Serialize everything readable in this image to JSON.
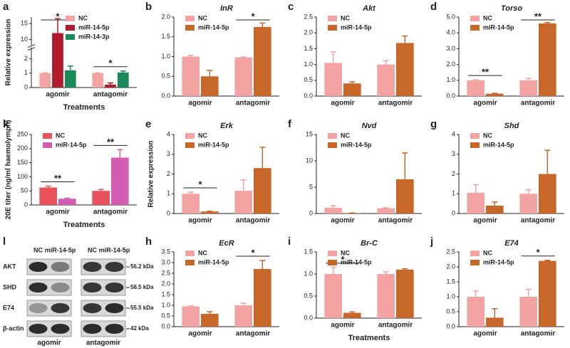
{
  "chart_data": [
    {
      "label": "a",
      "type": "bar",
      "categories": [
        "agomir",
        "antagomir"
      ],
      "y_label": "Relative expression",
      "x_label": "Treatments",
      "series": [
        {
          "name": "NC",
          "color": "#f4a3a3",
          "values": [
            1,
            1
          ],
          "errors": [
            0.02,
            0.02
          ]
        },
        {
          "name": "miR-14-5p",
          "color": "#b01c2e",
          "values": [
            12,
            0.2
          ],
          "errors": [
            4.5,
            0.12
          ]
        },
        {
          "name": "miR-14-3p",
          "color": "#1a8a5a",
          "values": [
            1.2,
            1.05
          ],
          "errors": [
            0.3,
            0.1
          ]
        }
      ],
      "ylim": [
        0,
        17
      ],
      "ybreak": [
        2.5,
        8
      ],
      "yticks": [
        0,
        1,
        2,
        10,
        15
      ],
      "annotations": [
        "*",
        "*"
      ]
    },
    {
      "label": "b",
      "title": "InR",
      "type": "bar",
      "categories": [
        "agomir",
        "antagomir"
      ],
      "series": [
        {
          "name": "NC",
          "color": "#f4a3a3",
          "values": [
            1.0,
            0.98
          ],
          "errors": [
            0.03,
            0.01
          ]
        },
        {
          "name": "miR-14-5p",
          "color": "#c8672a",
          "values": [
            0.5,
            1.75
          ],
          "errors": [
            0.15,
            0.1
          ]
        }
      ],
      "ylim": [
        0,
        2
      ],
      "yticks": [
        {
          "value": 0,
          "label": "0.0"
        },
        0.5,
        {
          "value": 1,
          "label": "1.0"
        },
        1.5,
        {
          "value": 2,
          "label": "2.0"
        }
      ],
      "annotations": [
        null,
        "*"
      ]
    },
    {
      "label": "c",
      "title": "Akt",
      "type": "bar",
      "categories": [
        "agomir",
        "antagomir"
      ],
      "series": [
        {
          "name": "NC",
          "color": "#f4a3a3",
          "values": [
            1.05,
            1.0
          ],
          "errors": [
            0.35,
            0.12
          ]
        },
        {
          "name": "miR-14-5p",
          "color": "#c8672a",
          "values": [
            0.4,
            1.68
          ],
          "errors": [
            0.05,
            0.22
          ]
        }
      ],
      "ylim": [
        0,
        2.5
      ],
      "yticks": [
        {
          "value": 0,
          "label": "0.0"
        },
        0.5,
        {
          "value": 1,
          "label": "1.0"
        },
        1.5,
        {
          "value": 2,
          "label": "2.0"
        },
        2.5
      ],
      "annotations": [
        null,
        null
      ]
    },
    {
      "label": "d",
      "title": "Torso",
      "type": "bar",
      "categories": [
        "agomir",
        "antagomir"
      ],
      "series": [
        {
          "name": "NC",
          "color": "#f4a3a3",
          "values": [
            1.0,
            1.0
          ],
          "errors": [
            0.03,
            0.12
          ]
        },
        {
          "name": "miR-14-5p",
          "color": "#c8672a",
          "values": [
            0.15,
            4.6
          ],
          "errors": [
            0.03,
            0.05
          ]
        }
      ],
      "ylim": [
        0,
        5
      ],
      "yticks": [
        {
          "value": 0,
          "label": "0.0"
        },
        {
          "value": 1,
          "label": "1.0"
        },
        {
          "value": 2,
          "label": "2.0"
        },
        {
          "value": 3,
          "label": "3.0"
        },
        {
          "value": 4,
          "label": "4.0"
        },
        {
          "value": 5,
          "label": "5.0"
        }
      ],
      "annotations": [
        "**",
        "**"
      ]
    },
    {
      "label": "k",
      "type": "bar",
      "categories": [
        "agomir",
        "antagomir"
      ],
      "y_label": "20E titer (ng/ml haemolymph)",
      "x_label": "Treatments",
      "series": [
        {
          "name": "NC",
          "color": "#e8525a",
          "values": [
            62,
            50
          ],
          "errors": [
            5,
            5
          ]
        },
        {
          "name": "miR-14-5p",
          "color": "#d35db3",
          "values": [
            22,
            168
          ],
          "errors": [
            2,
            28
          ]
        }
      ],
      "ylim": [
        0,
        250
      ],
      "yticks": [
        0,
        50,
        100,
        150,
        200,
        250
      ],
      "annotations": [
        "**",
        "**"
      ]
    },
    {
      "label": "e",
      "title": "Erk",
      "type": "bar",
      "categories": [
        "agomir",
        "antagomir"
      ],
      "y_label": "Relative expression",
      "series": [
        {
          "name": "NC",
          "color": "#f4a3a3",
          "values": [
            1.0,
            1.15
          ],
          "errors": [
            0.08,
            0.55
          ]
        },
        {
          "name": "miR-14-5p",
          "color": "#c8672a",
          "values": [
            0.1,
            2.3
          ],
          "errors": [
            0.02,
            1.05
          ]
        }
      ],
      "ylim": [
        0,
        4
      ],
      "yticks": [
        0,
        1,
        2,
        3,
        4
      ],
      "annotations": [
        "*",
        null
      ]
    },
    {
      "label": "f",
      "title": "Nvd",
      "type": "bar",
      "categories": [
        "agomir",
        "antagomir"
      ],
      "series": [
        {
          "name": "NC",
          "color": "#f4a3a3",
          "values": [
            1.1,
            1.0
          ],
          "errors": [
            0.4,
            0.1
          ]
        },
        {
          "name": "miR-14-5p",
          "color": "#c8672a",
          "values": [
            0.05,
            6.5
          ],
          "errors": [
            0.05,
            5
          ]
        }
      ],
      "ylim": [
        0,
        15
      ],
      "yticks": [
        0,
        5,
        10,
        15
      ],
      "annotations": [
        null,
        null
      ]
    },
    {
      "label": "g",
      "title": "Shd",
      "type": "bar",
      "categories": [
        "agomir",
        "antagomir"
      ],
      "series": [
        {
          "name": "NC",
          "color": "#f4a3a3",
          "values": [
            1.05,
            1.0
          ],
          "errors": [
            0.4,
            0.2
          ]
        },
        {
          "name": "miR-14-5p",
          "color": "#c8672a",
          "values": [
            0.4,
            2.0
          ],
          "errors": [
            0.18,
            1.2
          ]
        }
      ],
      "ylim": [
        0,
        4
      ],
      "yticks": [
        0,
        1,
        2,
        3,
        4
      ],
      "annotations": [
        null,
        null
      ]
    },
    {
      "label": "h",
      "title": "EcR",
      "type": "bar",
      "categories": [
        "agomir",
        "antagomir"
      ],
      "series": [
        {
          "name": "NC",
          "color": "#f4a3a3",
          "values": [
            0.95,
            1.0
          ],
          "errors": [
            0.02,
            0.1
          ]
        },
        {
          "name": "miR-14-5p",
          "color": "#c8672a",
          "values": [
            0.6,
            2.7
          ],
          "errors": [
            0.1,
            0.4
          ]
        }
      ],
      "ylim": [
        0,
        3.5
      ],
      "yticks": [
        {
          "value": 0,
          "label": "0.0"
        },
        0.5,
        {
          "value": 1,
          "label": "1.0"
        },
        1.5,
        {
          "value": 2,
          "label": "2.0"
        },
        2.5,
        {
          "value": 3,
          "label": "3.0"
        },
        3.5
      ],
      "annotations": [
        null,
        "*"
      ]
    },
    {
      "label": "i",
      "title": "Br-C",
      "type": "bar",
      "categories": [
        "agomir",
        "antagomir"
      ],
      "x_label": "Treatments",
      "series": [
        {
          "name": "NC",
          "color": "#f4a3a3",
          "values": [
            1.0,
            1.0
          ],
          "errors": [
            0.15,
            0.05
          ]
        },
        {
          "name": "miR-14-5p",
          "color": "#c8672a",
          "values": [
            0.12,
            1.1
          ],
          "errors": [
            0.02,
            0.02
          ]
        }
      ],
      "ylim": [
        0,
        1.5
      ],
      "yticks": [
        {
          "value": 0,
          "label": "0.0"
        },
        0.5,
        {
          "value": 1,
          "label": "1.0"
        },
        1.5
      ],
      "annotations": [
        "*",
        null
      ]
    },
    {
      "label": "j",
      "title": "E74",
      "type": "bar",
      "categories": [
        "agomir",
        "antagomir"
      ],
      "series": [
        {
          "name": "NC",
          "color": "#f4a3a3",
          "values": [
            1.0,
            1.0
          ],
          "errors": [
            0.2,
            0.25
          ]
        },
        {
          "name": "miR-14-5p",
          "color": "#c8672a",
          "values": [
            0.3,
            2.2
          ],
          "errors": [
            0.3,
            0.02
          ]
        }
      ],
      "ylim": [
        0,
        2.5
      ],
      "yticks": [
        {
          "value": 0,
          "label": "0.0"
        },
        0.5,
        {
          "value": 1,
          "label": "1.0"
        },
        1.5,
        {
          "value": 2,
          "label": "2.0"
        },
        2.5
      ],
      "annotations": [
        null,
        "*"
      ]
    }
  ],
  "blot": {
    "label": "l",
    "columns": [
      [
        "NC",
        "miR-14-5p"
      ],
      [
        "NC",
        "miR-14-5p"
      ]
    ],
    "rows": [
      {
        "name": "AKT",
        "size": "56.2 kDa"
      },
      {
        "name": "SHD",
        "size": "58.5 kDa"
      },
      {
        "name": "E74",
        "size": "55.5 kDa"
      },
      {
        "name": "β-actin",
        "size": "42 kDa"
      }
    ],
    "groups": [
      "agomir",
      "antagomir"
    ]
  }
}
